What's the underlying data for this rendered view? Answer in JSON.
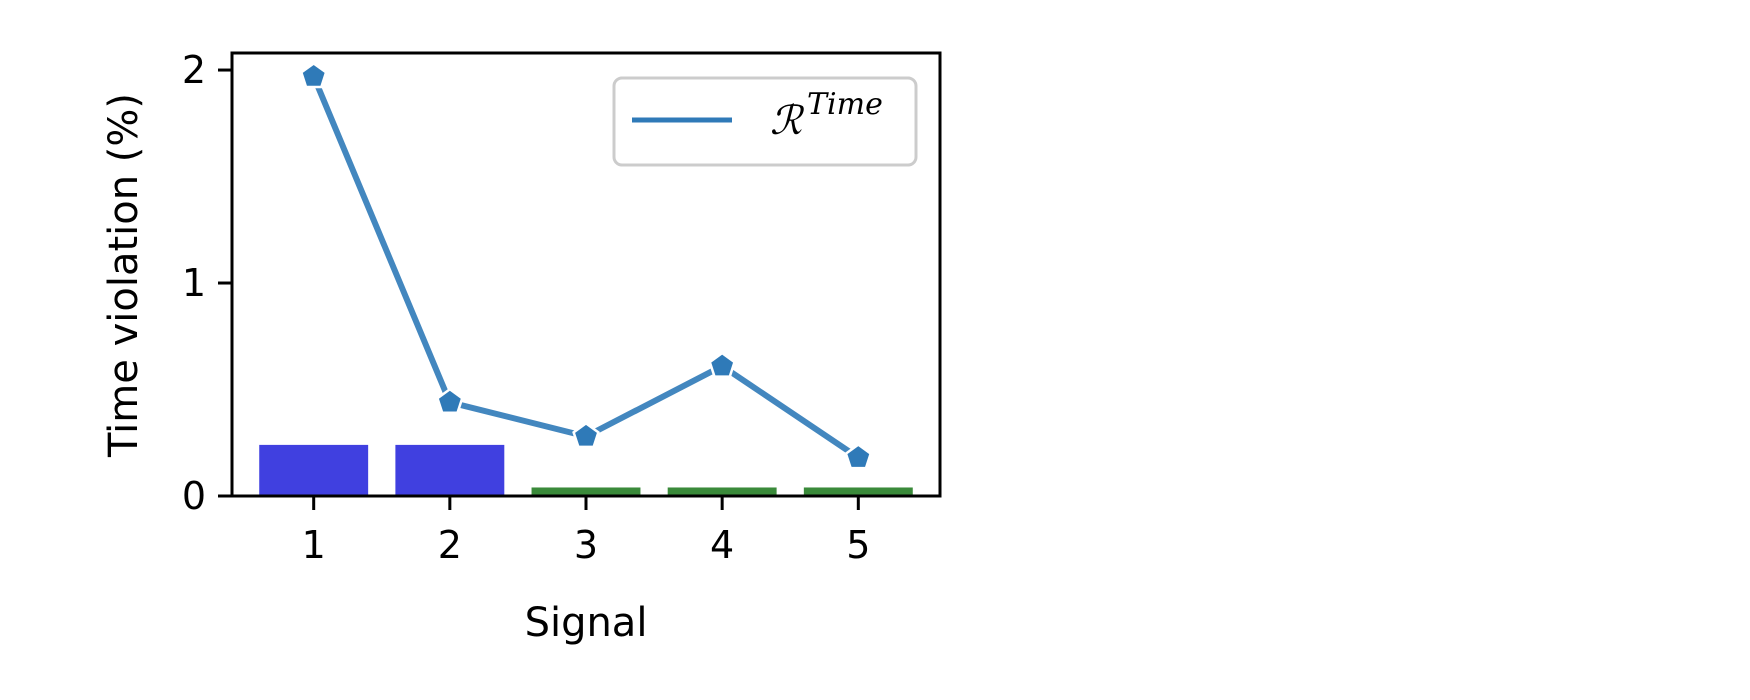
{
  "chart_data": {
    "type": "bar",
    "xlabel": "Signal",
    "ylabel": "Time violation (%)",
    "categories": [
      "1",
      "2",
      "3",
      "4",
      "5"
    ],
    "x": [
      1,
      2,
      3,
      4,
      5
    ],
    "ylim": [
      0,
      2.08
    ],
    "yticks": [
      0,
      1,
      2
    ],
    "grid": false,
    "bars": {
      "values": [
        0.24,
        0.24,
        0.04,
        0.04,
        0.04
      ],
      "colors": [
        "#4040e0",
        "#4040e0",
        "#3a8a3a",
        "#3a8a3a",
        "#3a8a3a"
      ]
    },
    "series": [
      {
        "name": "ℛTime",
        "type": "line",
        "marker": "pentagon",
        "color": "#2f7ab8",
        "values": [
          1.97,
          0.44,
          0.28,
          0.61,
          0.18
        ]
      }
    ],
    "legend": {
      "position": "top-right",
      "entries": [
        {
          "label_main": "ℛ",
          "label_sup": "Time",
          "color": "#2f7ab8"
        }
      ]
    }
  }
}
